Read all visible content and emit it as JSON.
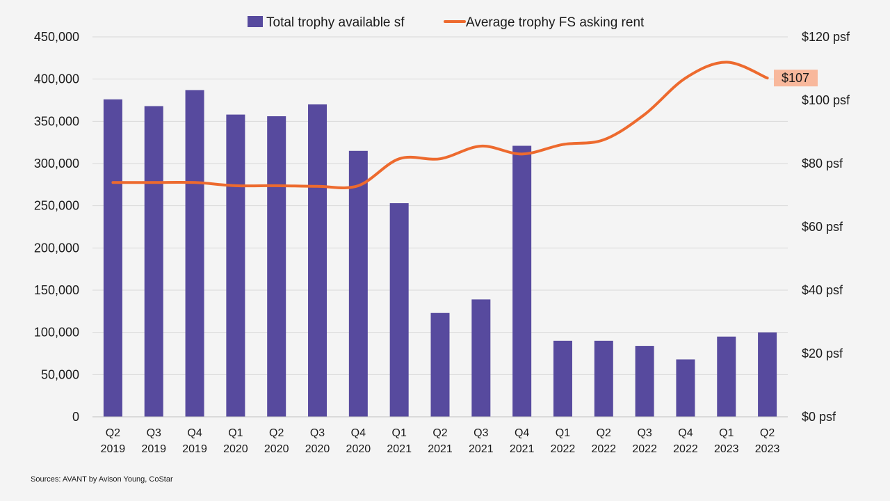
{
  "chart_data": {
    "type": "bar",
    "categories": [
      [
        "Q2",
        "2019"
      ],
      [
        "Q3",
        "2019"
      ],
      [
        "Q4",
        "2019"
      ],
      [
        "Q1",
        "2020"
      ],
      [
        "Q2",
        "2020"
      ],
      [
        "Q3",
        "2020"
      ],
      [
        "Q4",
        "2020"
      ],
      [
        "Q1",
        "2021"
      ],
      [
        "Q2",
        "2021"
      ],
      [
        "Q3",
        "2021"
      ],
      [
        "Q4",
        "2021"
      ],
      [
        "Q1",
        "2022"
      ],
      [
        "Q2",
        "2022"
      ],
      [
        "Q3",
        "2022"
      ],
      [
        "Q4",
        "2022"
      ],
      [
        "Q1",
        "2023"
      ],
      [
        "Q2",
        "2023"
      ]
    ],
    "series": [
      {
        "name": "Total trophy available sf",
        "type": "bar",
        "axis": "left",
        "color": "#574a9e",
        "values": [
          376000,
          368000,
          387000,
          358000,
          356000,
          370000,
          315000,
          253000,
          123000,
          139000,
          321000,
          90000,
          90000,
          84000,
          68000,
          95000,
          100000
        ]
      },
      {
        "name": "Average trophy FS asking rent",
        "type": "line",
        "axis": "right",
        "color": "#ed6a2e",
        "values": [
          74,
          74,
          74,
          73,
          73,
          72.8,
          73,
          81.5,
          81.5,
          85.5,
          83,
          86,
          87.5,
          95.5,
          107,
          112,
          107
        ]
      }
    ],
    "left_axis": {
      "ylim": [
        0,
        450000
      ],
      "ticks": [
        0,
        50000,
        100000,
        150000,
        200000,
        250000,
        300000,
        350000,
        400000,
        450000
      ],
      "tick_labels": [
        "0",
        "50,000",
        "100,000",
        "150,000",
        "200,000",
        "250,000",
        "300,000",
        "350,000",
        "400,000",
        "450,000"
      ]
    },
    "right_axis": {
      "ylim": [
        0,
        120
      ],
      "ticks": [
        0,
        20,
        40,
        60,
        80,
        100,
        120
      ],
      "tick_labels": [
        "$0 psf",
        "$20 psf",
        "$40 psf",
        "$60 psf",
        "$80 psf",
        "$100 psf",
        "$120 psf"
      ]
    },
    "end_label": {
      "text": "$107",
      "color": "#f8b89c"
    },
    "legend": {
      "position": "top-center"
    },
    "grid": true,
    "source_note": "Sources:  AVANT by Avison Young, CoStar"
  }
}
